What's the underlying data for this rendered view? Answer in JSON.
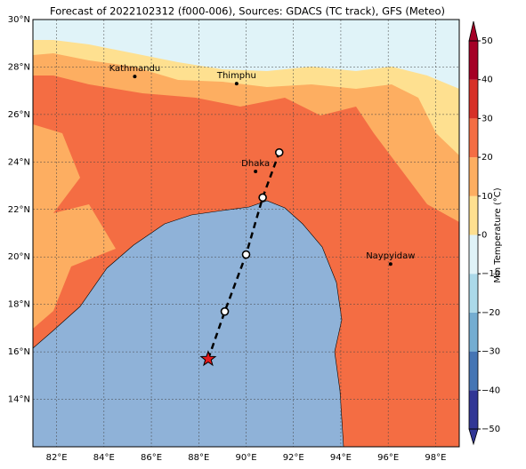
{
  "title": "Forecast of 2022102312 (f000-006), Sources: GDACS (TC track), GFS (Meteo)",
  "map": {
    "lon_range": [
      81,
      99
    ],
    "lat_range": [
      12,
      30
    ],
    "lon_ticks": [
      {
        "value": 82,
        "label": "82°E"
      },
      {
        "value": 84,
        "label": "84°E"
      },
      {
        "value": 86,
        "label": "86°E"
      },
      {
        "value": 88,
        "label": "88°E"
      },
      {
        "value": 90,
        "label": "90°E"
      },
      {
        "value": 92,
        "label": "92°E"
      },
      {
        "value": 94,
        "label": "94°E"
      },
      {
        "value": 96,
        "label": "96°E"
      },
      {
        "value": 98,
        "label": "98°E"
      }
    ],
    "lat_ticks": [
      {
        "value": 14,
        "label": "14°N"
      },
      {
        "value": 16,
        "label": "16°N"
      },
      {
        "value": 18,
        "label": "18°N"
      },
      {
        "value": 20,
        "label": "20°N"
      },
      {
        "value": 22,
        "label": "22°N"
      },
      {
        "value": 24,
        "label": "24°N"
      },
      {
        "value": 26,
        "label": "26°N"
      },
      {
        "value": 28,
        "label": "28°N"
      },
      {
        "value": 30,
        "label": "30°N"
      }
    ],
    "cities": [
      {
        "name": "Kathmandu",
        "lon": 85.3,
        "lat": 27.6
      },
      {
        "name": "Thimphu",
        "lon": 89.6,
        "lat": 27.3
      },
      {
        "name": "Dhaka",
        "lon": 90.4,
        "lat": 23.6
      },
      {
        "name": "Naypyidaw",
        "lon": 96.1,
        "lat": 19.7
      }
    ],
    "track": {
      "lon": [
        88.4,
        89.1,
        90.0,
        90.7,
        91.4
      ],
      "lat": [
        15.7,
        17.7,
        20.1,
        22.5,
        24.4
      ]
    }
  },
  "colorbar": {
    "label": "Min Temperature (°C)",
    "range": [
      -50,
      50
    ],
    "ticks": [
      {
        "value": -50,
        "label": "−50"
      },
      {
        "value": -40,
        "label": "−40"
      },
      {
        "value": -30,
        "label": "−30"
      },
      {
        "value": -20,
        "label": "−20"
      },
      {
        "value": -10,
        "label": "−10"
      },
      0,
      10,
      20,
      30,
      40,
      50
    ],
    "colors": [
      "#313695",
      "#4575b4",
      "#74add1",
      "#abd9e9",
      "#e0f3f8",
      "#fee090",
      "#fdae61",
      "#f46d43",
      "#d73027",
      "#a50026"
    ]
  }
}
